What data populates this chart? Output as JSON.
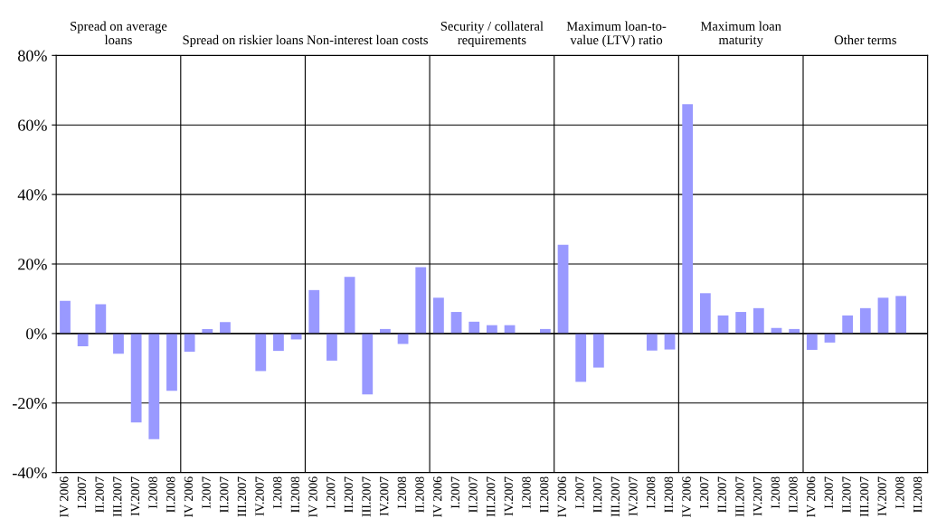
{
  "chart_data": {
    "type": "bar",
    "categories": [
      "IV 2006",
      "I.2007",
      "II.2007",
      "III.2007",
      "IV.2007",
      "I.2008",
      "II.2008",
      "IV 2006",
      "I.2007",
      "II.2007",
      "III.2007",
      "IV.2007",
      "I.2008",
      "II.2008",
      "IV 2006",
      "I.2007",
      "II.2007",
      "III.2007",
      "IV.2007",
      "I.2008",
      "II.2008",
      "IV 2006",
      "I.2007",
      "II.2007",
      "III.2007",
      "IV.2007",
      "I.2008",
      "II.2008",
      "IV 2006",
      "I.2007",
      "II.2007",
      "III.2007",
      "IV.2007",
      "I.2008",
      "II.2008",
      "IV 2006",
      "I.2007",
      "II.2007",
      "III.2007",
      "IV.2007",
      "I.2008",
      "II.2008",
      "IV 2006",
      "I.2007",
      "II.2007",
      "III.2007",
      "IV.2007",
      "I.2008",
      "II.2008"
    ],
    "values": [
      9.4,
      -3.7,
      8.4,
      -5.8,
      -25.6,
      -30.4,
      -16.5,
      -5.2,
      1.3,
      3.3,
      null,
      -10.8,
      -5.0,
      -1.7,
      12.5,
      -7.8,
      16.3,
      -17.5,
      1.3,
      -3.0,
      19.1,
      10.3,
      6.2,
      3.4,
      2.4,
      2.4,
      null,
      1.3,
      25.5,
      -13.9,
      -9.8,
      null,
      null,
      -4.9,
      -4.6,
      66.0,
      11.6,
      5.2,
      6.2,
      7.3,
      1.6,
      1.3,
      -4.7,
      -2.6,
      5.2,
      7.3,
      10.3,
      10.8,
      null
    ],
    "color": "#9999ff",
    "ylim": [
      -40,
      80
    ],
    "yticks": [
      {
        "value": -40,
        "label": "-40%"
      },
      {
        "value": -20,
        "label": "-20%"
      },
      {
        "value": 0,
        "label": "0%"
      },
      {
        "value": 20,
        "label": "20%"
      },
      {
        "value": 40,
        "label": "40%"
      },
      {
        "value": 60,
        "label": "60%"
      },
      {
        "value": 80,
        "label": "80%"
      }
    ],
    "grid": true,
    "annotations": [
      "Spread on average\nloans",
      "Spread on riskier loans",
      "Non-interest loan costs",
      "Security / collateral\nrequirements",
      "Maximum loan-to-\nvalue (LTV) ratio",
      "Maximum loan\nmaturity",
      "Other terms"
    ]
  }
}
